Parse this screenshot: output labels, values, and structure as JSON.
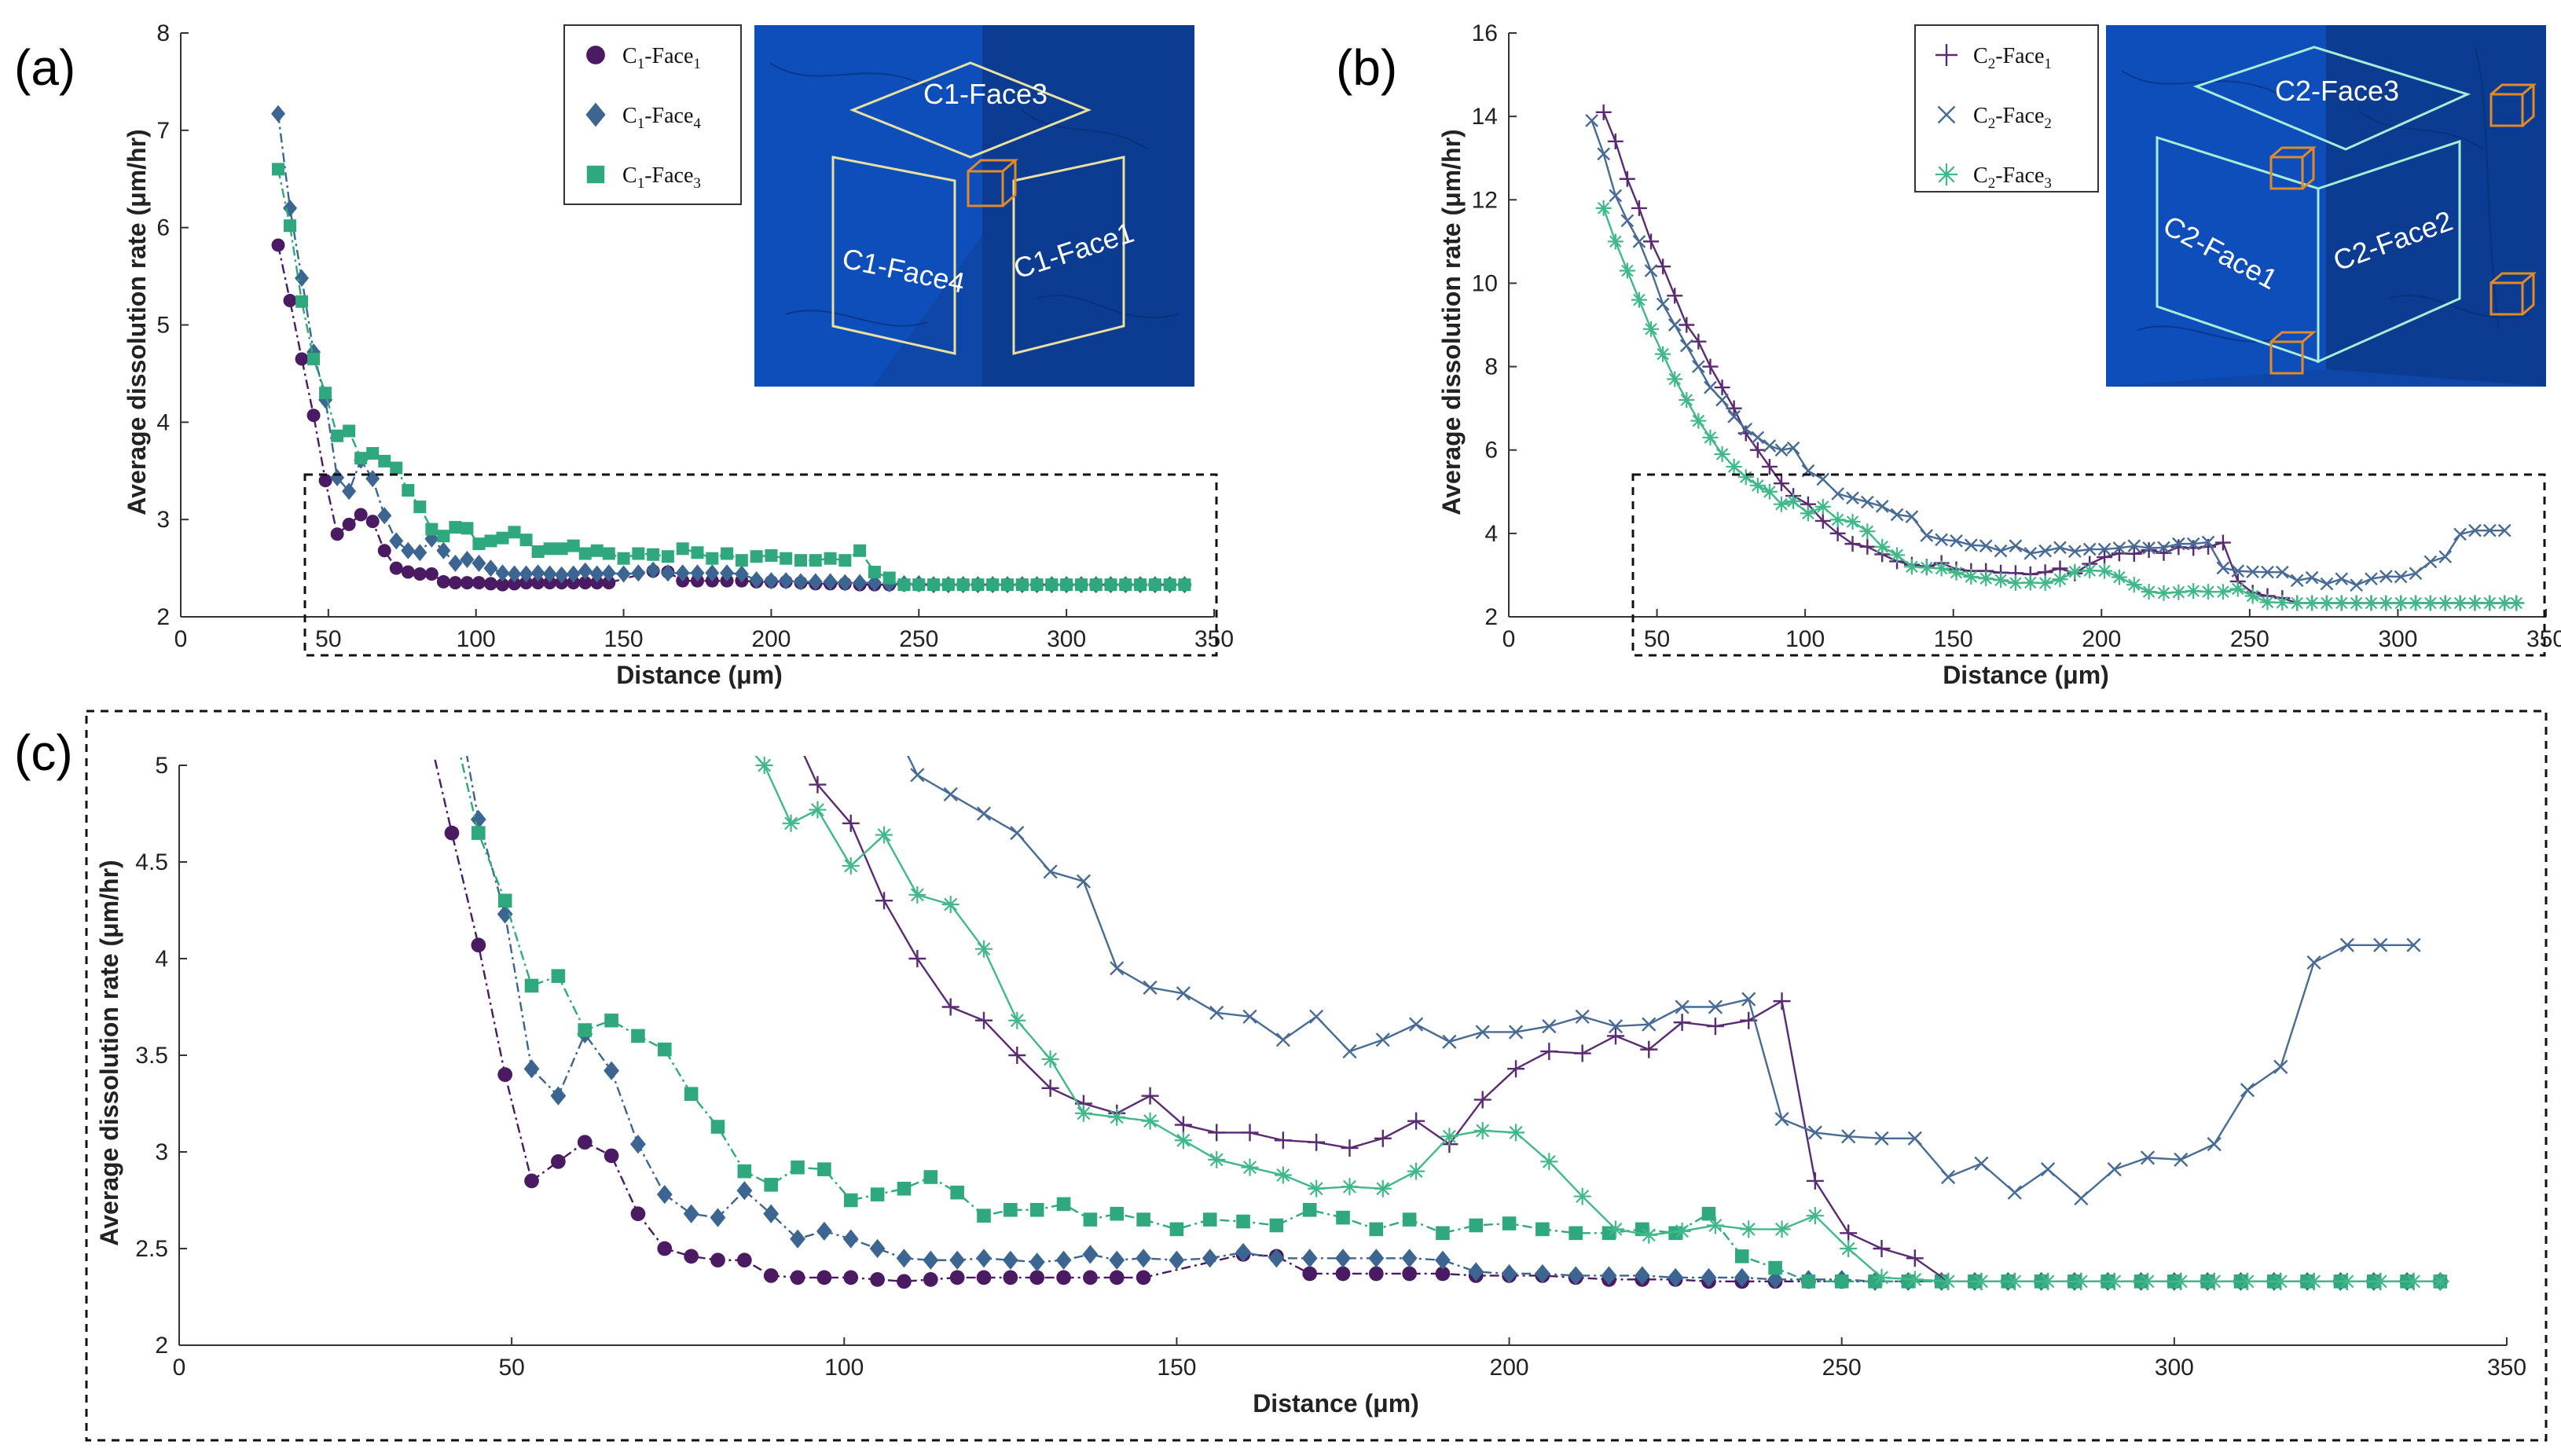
{
  "colors": {
    "face1": "#4a1a63",
    "face4": "#3d6591",
    "face3": "#2fa87e",
    "c2face1": "#5a2a73",
    "c2face2": "#476b95",
    "c2face3": "#41b889",
    "inset_bg": "#0e47a8",
    "inset_frame": "#e8e0a0",
    "inset_frame2": "#a8ecd6",
    "cube": "#e08a2a"
  },
  "panels": {
    "a": {
      "tag": "(a)",
      "inset": {
        "labels": [
          "C1-Face3",
          "C1-Face4",
          "C1-Face1"
        ]
      }
    },
    "b": {
      "tag": "(b)",
      "inset": {
        "labels": [
          "C2-Face3",
          "C2-Face1",
          "C2-Face2"
        ]
      }
    },
    "c": {
      "tag": "(c)"
    }
  },
  "chart_data": [
    {
      "id": "a",
      "type": "line",
      "title": "",
      "xlabel": "Distance (μm)",
      "ylabel": "Average dissolution rate (μm/hr)",
      "xlim": [
        0,
        350
      ],
      "ylim": [
        2,
        8
      ],
      "xticks": [
        0,
        50,
        100,
        150,
        200,
        250,
        300,
        350
      ],
      "yticks": [
        2,
        3,
        4,
        5,
        6,
        7,
        8
      ],
      "legend_position": "top-right",
      "legend": [
        {
          "name": "C1-Face1",
          "base": "C",
          "sub1": "1",
          "mid": "-Face",
          "sub2": "1",
          "marker": "circle",
          "color_key": "face1"
        },
        {
          "name": "C1-Face4",
          "base": "C",
          "sub1": "1",
          "mid": "-Face",
          "sub2": "4",
          "marker": "diamond",
          "color_key": "face4"
        },
        {
          "name": "C1-Face3",
          "base": "C",
          "sub1": "1",
          "mid": "-Face",
          "sub2": "3",
          "marker": "square",
          "color_key": "face3"
        }
      ],
      "series": [
        {
          "name": "C1-Face1",
          "marker": "circle",
          "color_key": "face1",
          "dash": true,
          "x": [
            33,
            37,
            41,
            45,
            49,
            53,
            57,
            61,
            65,
            69,
            73,
            77,
            81,
            85,
            89,
            93,
            97,
            101,
            105,
            109,
            113,
            117,
            121,
            125,
            129,
            133,
            137,
            141,
            145,
            160,
            165,
            170,
            175,
            180,
            185,
            190,
            195,
            200,
            205,
            210,
            215,
            220,
            225,
            230,
            235,
            240,
            245,
            250,
            255,
            260,
            265,
            270,
            275,
            280,
            285,
            290,
            295,
            300,
            305,
            310,
            315,
            320,
            325,
            330,
            335,
            340
          ],
          "y": [
            5.82,
            5.25,
            4.65,
            4.07,
            3.4,
            2.85,
            2.95,
            3.05,
            2.98,
            2.68,
            2.5,
            2.46,
            2.44,
            2.44,
            2.36,
            2.35,
            2.35,
            2.35,
            2.34,
            2.33,
            2.34,
            2.35,
            2.35,
            2.35,
            2.35,
            2.35,
            2.35,
            2.35,
            2.35,
            2.47,
            2.46,
            2.37,
            2.37,
            2.37,
            2.37,
            2.37,
            2.36,
            2.36,
            2.36,
            2.35,
            2.34,
            2.34,
            2.34,
            2.33,
            2.33,
            2.33,
            2.33,
            2.33,
            2.33,
            2.33,
            2.33,
            2.33,
            2.33,
            2.33,
            2.33,
            2.33,
            2.33,
            2.33,
            2.33,
            2.33,
            2.33,
            2.33,
            2.33,
            2.33,
            2.33,
            2.33
          ]
        },
        {
          "name": "C1-Face4",
          "marker": "diamond",
          "color_key": "face4",
          "dash": true,
          "x": [
            33,
            37,
            41,
            45,
            49,
            53,
            57,
            61,
            65,
            69,
            73,
            77,
            81,
            85,
            89,
            93,
            97,
            101,
            105,
            109,
            113,
            117,
            121,
            125,
            129,
            133,
            137,
            141,
            145,
            150,
            155,
            160,
            165,
            170,
            175,
            180,
            185,
            190,
            195,
            200,
            205,
            210,
            215,
            220,
            225,
            230,
            235,
            240,
            245,
            250,
            255,
            260,
            265,
            270,
            275,
            280,
            285,
            290,
            295,
            300,
            305,
            310,
            315,
            320,
            325,
            330,
            335,
            340
          ],
          "y": [
            7.17,
            6.2,
            5.48,
            4.72,
            4.23,
            3.43,
            3.29,
            3.61,
            3.42,
            3.04,
            2.78,
            2.68,
            2.66,
            2.8,
            2.68,
            2.55,
            2.59,
            2.55,
            2.5,
            2.45,
            2.44,
            2.44,
            2.45,
            2.44,
            2.43,
            2.44,
            2.47,
            2.44,
            2.45,
            2.44,
            2.45,
            2.48,
            2.45,
            2.45,
            2.45,
            2.45,
            2.45,
            2.44,
            2.38,
            2.37,
            2.37,
            2.36,
            2.36,
            2.36,
            2.35,
            2.35,
            2.35,
            2.34,
            2.34,
            2.34,
            2.33,
            2.33,
            2.33,
            2.33,
            2.33,
            2.33,
            2.33,
            2.33,
            2.33,
            2.33,
            2.33,
            2.33,
            2.33,
            2.33,
            2.33,
            2.33,
            2.33,
            2.33
          ]
        },
        {
          "name": "C1-Face3",
          "marker": "square",
          "color_key": "face3",
          "dash": true,
          "x": [
            33,
            37,
            41,
            45,
            49,
            53,
            57,
            61,
            65,
            69,
            73,
            77,
            81,
            85,
            89,
            93,
            97,
            101,
            105,
            109,
            113,
            117,
            121,
            125,
            129,
            133,
            137,
            141,
            145,
            150,
            155,
            160,
            165,
            170,
            175,
            180,
            185,
            190,
            195,
            200,
            205,
            210,
            215,
            220,
            225,
            230,
            235,
            240,
            245,
            250,
            255,
            260,
            265,
            270,
            275,
            280,
            285,
            290,
            295,
            300,
            305,
            310,
            315,
            320,
            325,
            330,
            335,
            340
          ],
          "y": [
            6.6,
            6.02,
            5.24,
            4.65,
            4.3,
            3.86,
            3.91,
            3.63,
            3.68,
            3.6,
            3.53,
            3.3,
            3.13,
            2.9,
            2.83,
            2.92,
            2.91,
            2.75,
            2.78,
            2.81,
            2.87,
            2.79,
            2.67,
            2.7,
            2.7,
            2.73,
            2.65,
            2.68,
            2.65,
            2.6,
            2.65,
            2.64,
            2.62,
            2.7,
            2.66,
            2.6,
            2.65,
            2.58,
            2.62,
            2.63,
            2.6,
            2.58,
            2.58,
            2.6,
            2.58,
            2.68,
            2.46,
            2.4,
            2.33,
            2.33,
            2.33,
            2.33,
            2.33,
            2.33,
            2.33,
            2.33,
            2.33,
            2.33,
            2.33,
            2.33,
            2.33,
            2.33,
            2.33,
            2.33,
            2.33,
            2.33,
            2.33,
            2.33
          ]
        }
      ]
    },
    {
      "id": "b",
      "type": "line",
      "title": "",
      "xlabel": "Distance (μm)",
      "ylabel": "Average dissolution rate (μm/hr)",
      "xlim": [
        0,
        350
      ],
      "ylim": [
        2,
        16
      ],
      "xticks": [
        0,
        50,
        100,
        150,
        200,
        250,
        300,
        350
      ],
      "yticks": [
        2,
        4,
        6,
        8,
        10,
        12,
        14,
        16
      ],
      "legend_position": "top-right",
      "legend": [
        {
          "name": "C2-Face1",
          "base": "C",
          "sub1": "2",
          "mid": "-Face",
          "sub2": "1",
          "marker": "plus",
          "color_key": "c2face1"
        },
        {
          "name": "C2-Face2",
          "base": "C",
          "sub1": "2",
          "mid": "-Face",
          "sub2": "2",
          "marker": "cross",
          "color_key": "c2face2"
        },
        {
          "name": "C2-Face3",
          "base": "C",
          "sub1": "2",
          "mid": "-Face",
          "sub2": "3",
          "marker": "asterisk",
          "color_key": "c2face3"
        }
      ],
      "series": [
        {
          "name": "C2-Face1",
          "marker": "plus",
          "color_key": "c2face1",
          "dash": false,
          "x": [
            32,
            36,
            40,
            44,
            48,
            52,
            56,
            60,
            64,
            68,
            72,
            76,
            80,
            84,
            88,
            92,
            96,
            101,
            106,
            111,
            116,
            121,
            126,
            131,
            136,
            141,
            146,
            151,
            156,
            161,
            166,
            171,
            176,
            181,
            186,
            191,
            196,
            201,
            206,
            211,
            216,
            221,
            226,
            231,
            236,
            241,
            246,
            251,
            256,
            261,
            266,
            271,
            276,
            281,
            286,
            291,
            296,
            301,
            306,
            311,
            316,
            321,
            326,
            331,
            336,
            340
          ],
          "y": [
            14.1,
            13.4,
            12.5,
            11.8,
            11.0,
            10.4,
            9.7,
            9.0,
            8.6,
            8.0,
            7.5,
            7.0,
            6.4,
            6.0,
            5.6,
            5.2,
            4.9,
            4.7,
            4.3,
            4.0,
            3.75,
            3.68,
            3.5,
            3.33,
            3.25,
            3.2,
            3.29,
            3.14,
            3.1,
            3.1,
            3.06,
            3.05,
            3.02,
            3.07,
            3.16,
            3.04,
            3.27,
            3.43,
            3.52,
            3.51,
            3.6,
            3.53,
            3.67,
            3.65,
            3.68,
            3.78,
            2.85,
            2.58,
            2.5,
            2.45,
            2.33,
            2.33,
            2.33,
            2.33,
            2.33,
            2.33,
            2.33,
            2.33,
            2.33,
            2.33,
            2.33,
            2.33,
            2.33,
            2.33,
            2.33,
            2.33
          ]
        },
        {
          "name": "C2-Face2",
          "marker": "cross",
          "color_key": "c2face2",
          "dash": false,
          "x": [
            28,
            32,
            36,
            40,
            44,
            48,
            52,
            56,
            60,
            64,
            68,
            72,
            76,
            80,
            84,
            88,
            92,
            96,
            101,
            106,
            111,
            116,
            121,
            126,
            131,
            136,
            141,
            146,
            151,
            156,
            161,
            166,
            171,
            176,
            181,
            186,
            191,
            196,
            201,
            206,
            211,
            216,
            221,
            226,
            231,
            236,
            241,
            246,
            251,
            256,
            261,
            266,
            271,
            276,
            281,
            286,
            291,
            296,
            301,
            306,
            311,
            316,
            321,
            326,
            331,
            336
          ],
          "y": [
            13.9,
            13.1,
            12.1,
            11.5,
            11.0,
            10.3,
            9.5,
            9.0,
            8.5,
            8.0,
            7.5,
            7.2,
            6.8,
            6.5,
            6.3,
            6.1,
            6.0,
            6.05,
            5.5,
            5.3,
            4.95,
            4.85,
            4.75,
            4.65,
            4.45,
            4.4,
            3.95,
            3.85,
            3.82,
            3.72,
            3.7,
            3.58,
            3.7,
            3.52,
            3.58,
            3.66,
            3.57,
            3.62,
            3.62,
            3.65,
            3.7,
            3.65,
            3.66,
            3.75,
            3.75,
            3.79,
            3.17,
            3.1,
            3.08,
            3.07,
            3.07,
            2.87,
            2.94,
            2.79,
            2.91,
            2.76,
            2.91,
            2.97,
            2.96,
            3.04,
            3.32,
            3.44,
            3.98,
            4.07,
            4.07,
            4.07
          ]
        },
        {
          "name": "C2-Face3",
          "marker": "asterisk",
          "color_key": "c2face3",
          "dash": false,
          "x": [
            32,
            36,
            40,
            44,
            48,
            52,
            56,
            60,
            64,
            68,
            72,
            76,
            80,
            84,
            88,
            92,
            96,
            101,
            106,
            111,
            116,
            121,
            126,
            131,
            136,
            141,
            146,
            151,
            156,
            161,
            166,
            171,
            176,
            181,
            186,
            191,
            196,
            201,
            206,
            211,
            216,
            221,
            226,
            231,
            236,
            241,
            246,
            251,
            256,
            261,
            266,
            271,
            276,
            281,
            286,
            291,
            296,
            301,
            306,
            311,
            316,
            321,
            326,
            331,
            336,
            340
          ],
          "y": [
            11.8,
            11.0,
            10.3,
            9.6,
            8.9,
            8.3,
            7.7,
            7.2,
            6.7,
            6.3,
            5.9,
            5.6,
            5.35,
            5.15,
            5.0,
            4.7,
            4.77,
            4.48,
            4.64,
            4.33,
            4.28,
            4.05,
            3.68,
            3.48,
            3.2,
            3.18,
            3.16,
            3.06,
            2.96,
            2.92,
            2.88,
            2.81,
            2.82,
            2.81,
            2.9,
            3.08,
            3.11,
            3.1,
            2.95,
            2.77,
            2.6,
            2.57,
            2.59,
            2.62,
            2.6,
            2.6,
            2.67,
            2.5,
            2.35,
            2.34,
            2.33,
            2.33,
            2.33,
            2.33,
            2.33,
            2.33,
            2.33,
            2.33,
            2.33,
            2.33,
            2.33,
            2.33,
            2.33,
            2.33,
            2.33,
            2.33
          ]
        }
      ]
    },
    {
      "id": "c",
      "type": "line",
      "title": "",
      "xlabel": "Distance (μm)",
      "ylabel": "Average dissolution rate (μm/hr)",
      "xlim": [
        0,
        350
      ],
      "ylim": [
        2,
        5
      ],
      "xticks": [
        0,
        50,
        100,
        150,
        200,
        250,
        300,
        350
      ],
      "yticks": [
        2,
        2.5,
        3,
        3.5,
        4,
        4.5,
        5
      ],
      "legend_position": "none",
      "series_refs": [
        "a",
        "b"
      ]
    }
  ]
}
